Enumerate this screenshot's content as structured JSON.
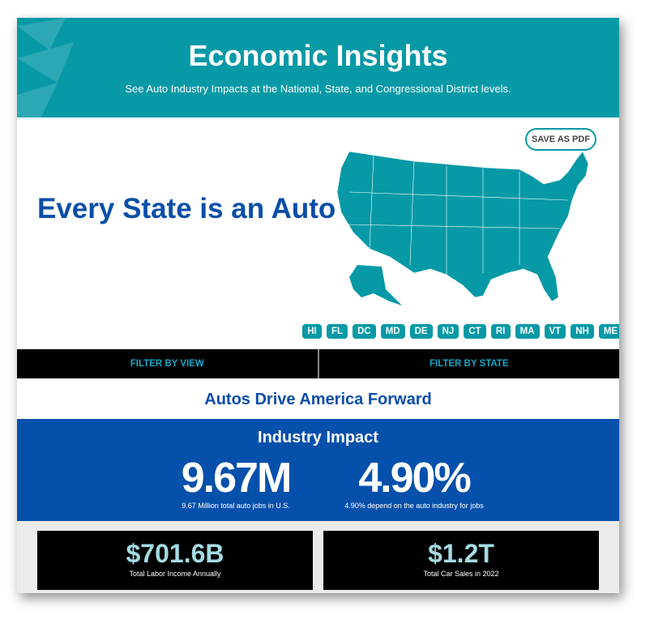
{
  "header": {
    "title": "Economic Insights",
    "subtitle": "See Auto Industry Impacts at the National, State, and Congressional District levels."
  },
  "hero": {
    "title": "Every State is an Auto State"
  },
  "save_pdf": "SAVE AS PDF",
  "map": {
    "color": "#0799a6"
  },
  "state_chips": [
    "HI",
    "FL",
    "DC",
    "MD",
    "DE",
    "NJ",
    "CT",
    "RI",
    "MA",
    "VT",
    "NH",
    "ME"
  ],
  "filters": {
    "view": "FILTER BY VIEW",
    "state": "FILTER BY STATE"
  },
  "tagline": "Autos Drive America Forward",
  "impact": {
    "title": "Industry Impact",
    "stats": [
      {
        "value": "9.67M",
        "label": "9.67 Million total auto jobs in U.S."
      },
      {
        "value": "4.90%",
        "label": "4.90% depend on the auto industry for jobs"
      }
    ]
  },
  "cards": [
    {
      "value": "$701.6B",
      "label": "Total Labor Income Annually"
    },
    {
      "value": "$1.2T",
      "label": "Total Car Sales in 2022"
    }
  ]
}
